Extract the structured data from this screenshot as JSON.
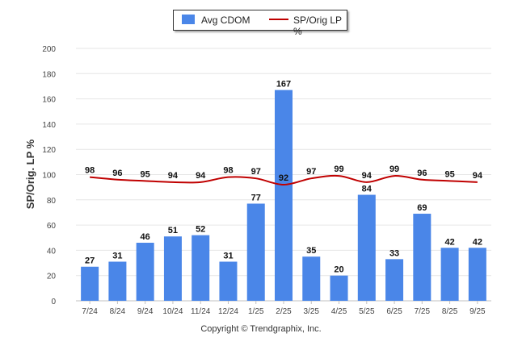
{
  "legend": {
    "bar_label": "Avg CDOM",
    "line_label": "SP/Orig LP %"
  },
  "copyright": "Copyright © Trendgraphix, Inc.",
  "colors": {
    "bar": "#4a86e8",
    "line": "#c00000",
    "grid": "#e6e6e6"
  },
  "chart_data": {
    "type": "bar",
    "ylabel": "SP/Orig. LP %",
    "ylim": [
      0,
      200
    ],
    "yticks": [
      0,
      20,
      40,
      60,
      80,
      100,
      120,
      140,
      160,
      180,
      200
    ],
    "categories": [
      "7/24",
      "8/24",
      "9/24",
      "10/24",
      "11/24",
      "12/24",
      "1/25",
      "2/25",
      "3/25",
      "4/25",
      "5/25",
      "6/25",
      "7/25",
      "8/25",
      "9/25"
    ],
    "series": [
      {
        "name": "Avg CDOM",
        "type": "bar",
        "values": [
          27,
          31,
          46,
          51,
          52,
          31,
          77,
          167,
          35,
          20,
          84,
          33,
          69,
          42,
          42
        ]
      },
      {
        "name": "SP/Orig LP %",
        "type": "line",
        "values": [
          98,
          96,
          95,
          94,
          94,
          98,
          97,
          92,
          97,
          99,
          94,
          99,
          96,
          95,
          94
        ]
      }
    ]
  }
}
